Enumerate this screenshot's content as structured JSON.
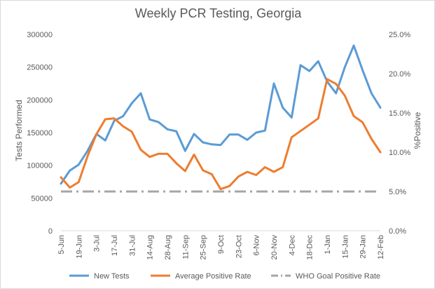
{
  "chart_data": {
    "type": "line",
    "title": "Weekly PCR Testing, Georgia",
    "ylabel_left": "Tests Performed",
    "ylabel_right": "%Positive",
    "y_left_range": [
      0,
      300000
    ],
    "y_left_ticks": [
      "0",
      "50000",
      "100000",
      "150000",
      "200000",
      "250000",
      "300000"
    ],
    "y_right_range": [
      0,
      25
    ],
    "y_right_ticks": [
      "0.0%",
      "5.0%",
      "10.0%",
      "15.0%",
      "20.0%",
      "25.0%"
    ],
    "x_tick_labels": [
      "5-Jun",
      "19-Jun",
      "3-Jul",
      "17-Jul",
      "31-Jul",
      "14-Aug",
      "28-Aug",
      "11-Sep",
      "25-Sep",
      "9-Oct",
      "23-Oct",
      "6-Nov",
      "20-Nov",
      "4-Dec",
      "18-Dec",
      "1-Jan",
      "15-Jan",
      "29-Jan",
      "12-Feb"
    ],
    "x_weeks": [
      "5-Jun",
      "12-Jun",
      "19-Jun",
      "26-Jun",
      "3-Jul",
      "10-Jul",
      "17-Jul",
      "24-Jul",
      "31-Jul",
      "7-Aug",
      "14-Aug",
      "21-Aug",
      "28-Aug",
      "4-Sep",
      "11-Sep",
      "18-Sep",
      "25-Sep",
      "2-Oct",
      "9-Oct",
      "16-Oct",
      "23-Oct",
      "30-Oct",
      "6-Nov",
      "13-Nov",
      "20-Nov",
      "27-Nov",
      "4-Dec",
      "11-Dec",
      "18-Dec",
      "25-Dec",
      "1-Jan",
      "8-Jan",
      "15-Jan",
      "22-Jan",
      "29-Jan",
      "5-Feb",
      "12-Feb"
    ],
    "grid": false,
    "legend_position": "bottom",
    "series": [
      {
        "name": "New Tests",
        "axis": "left",
        "color": "#5b9bd5",
        "style": "solid",
        "values": [
          72000,
          92000,
          101000,
          122000,
          148000,
          138000,
          168000,
          175000,
          195000,
          210000,
          170000,
          166000,
          155000,
          152000,
          122000,
          148000,
          135000,
          132000,
          131000,
          147000,
          147000,
          139000,
          150000,
          153000,
          225000,
          188000,
          173000,
          253000,
          244000,
          259000,
          228000,
          210000,
          250000,
          283000,
          245000,
          210000,
          188000
        ]
      },
      {
        "name": "Average Positive Rate",
        "axis": "right",
        "color": "#ed7d31",
        "style": "solid",
        "values": [
          6.8,
          5.5,
          6.2,
          9.5,
          12.3,
          14.2,
          14.3,
          13.3,
          12.6,
          10.3,
          9.4,
          9.8,
          9.8,
          8.6,
          7.6,
          9.7,
          7.7,
          7.2,
          5.3,
          5.7,
          6.9,
          7.5,
          7.1,
          8.1,
          7.5,
          8.1,
          11.9,
          12.7,
          13.5,
          14.3,
          19.3,
          18.7,
          17.2,
          14.6,
          13.8,
          11.7,
          10.0
        ]
      },
      {
        "name": "WHO Goal Positive Rate",
        "axis": "right",
        "color": "#a5a5a5",
        "style": "dash-dot",
        "values": [
          5,
          5,
          5,
          5,
          5,
          5,
          5,
          5,
          5,
          5,
          5,
          5,
          5,
          5,
          5,
          5,
          5,
          5,
          5,
          5,
          5,
          5,
          5,
          5,
          5,
          5,
          5,
          5,
          5,
          5,
          5,
          5,
          5,
          5,
          5,
          5,
          5
        ]
      }
    ]
  }
}
